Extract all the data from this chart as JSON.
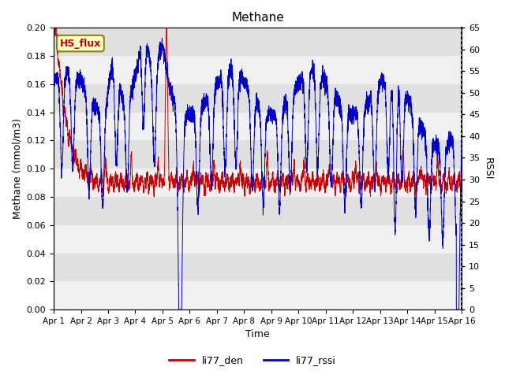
{
  "title": "Methane",
  "ylabel_left": "Methane (mmol/m3)",
  "ylabel_right": "RSSI",
  "xlabel": "Time",
  "ylim_left": [
    0.0,
    0.2
  ],
  "ylim_right": [
    0,
    65
  ],
  "yticks_left": [
    0.0,
    0.02,
    0.04,
    0.06,
    0.08,
    0.1,
    0.12,
    0.14,
    0.16,
    0.18,
    0.2
  ],
  "yticks_right": [
    0,
    5,
    10,
    15,
    20,
    25,
    30,
    35,
    40,
    45,
    50,
    55,
    60,
    65
  ],
  "xtick_labels": [
    "Apr 1",
    "Apr 2",
    "Apr 3",
    "Apr 4",
    "Apr 5",
    "Apr 6",
    "Apr 7",
    "Apr 8",
    "Apr 9",
    "Apr 10",
    "Apr 11",
    "Apr 12",
    "Apr 13",
    "Apr 14",
    "Apr 15",
    "Apr 16"
  ],
  "color_den": "#cc0000",
  "color_rssi": "#0000cc",
  "legend_box_color": "#ffffcc",
  "legend_box_edge": "#888800",
  "legend_box_text": "HS_flux",
  "legend_box_text_color": "#cc0000",
  "plot_bg_color": "#e8e8e8",
  "band_color_light": "#f0f0f0",
  "band_color_dark": "#e0e0e0"
}
